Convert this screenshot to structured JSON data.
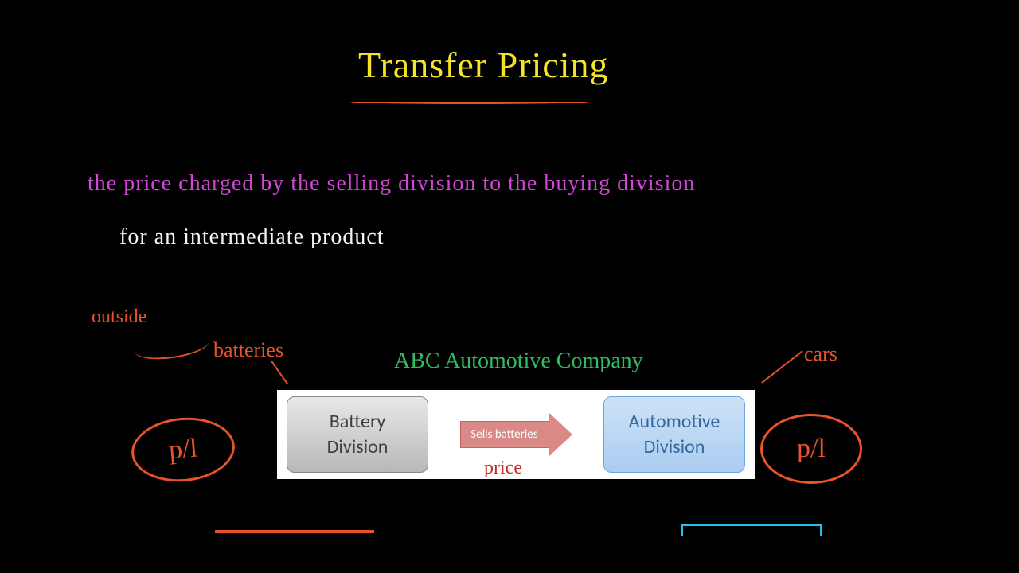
{
  "colors": {
    "background": "#000000",
    "title": "#f5e42a",
    "underline": "#e8532a",
    "definition_highlight": "#d245d6",
    "definition_plain": "#f3f3f3",
    "annotation_red": "#e8532a",
    "company_green": "#2fbb62",
    "price_red": "#cc2b26",
    "bracket_blue": "#1bc4e8",
    "box_battery_text": "#3f3f3f",
    "box_auto_text": "#33699f",
    "arrow_fill": "#d98986",
    "arrow_text": "#ffffff"
  },
  "title": {
    "text": "Transfer Pricing",
    "fontsize": 46
  },
  "definition": {
    "line1": "the price charged by the selling division to the buying division",
    "line2": "for an intermediate product"
  },
  "annotations": {
    "outside": "outside",
    "batteries": "batteries",
    "company": "ABC Automotive Company",
    "cars": "cars",
    "price": "price",
    "pl_left": "p/l",
    "pl_right": "p/l"
  },
  "diagram": {
    "type": "flowchart",
    "panel_bg": "#ffffff",
    "nodes": [
      {
        "id": "battery",
        "line1": "Battery",
        "line2": "Division",
        "bg_gradient": [
          "#e8e8e8",
          "#b8b8b8"
        ],
        "border": "#888888",
        "text_color": "#3f3f3f"
      },
      {
        "id": "automotive",
        "line1": "Automotive",
        "line2": "Division",
        "bg_gradient": [
          "#cfe2f7",
          "#a9cdf0"
        ],
        "border": "#6da7dc",
        "text_color": "#33699f"
      }
    ],
    "edge": {
      "label": "Sells batteries",
      "fill": "#d98986",
      "border": "#c06763",
      "text_color": "#ffffff"
    }
  }
}
